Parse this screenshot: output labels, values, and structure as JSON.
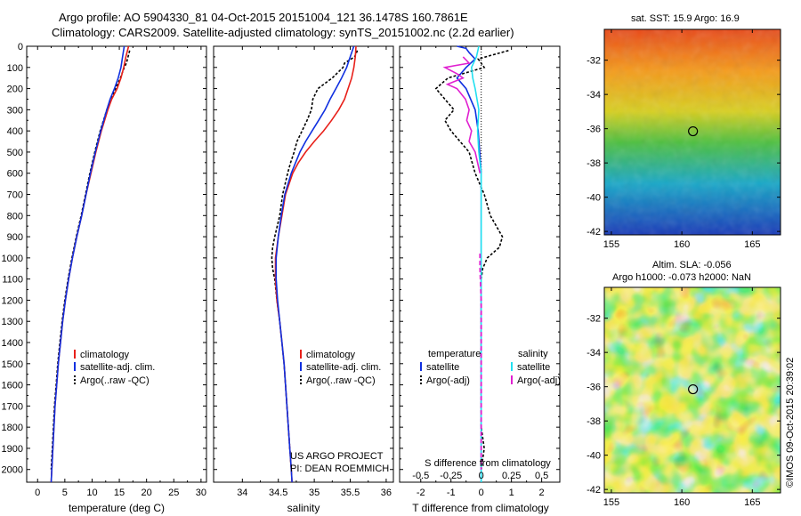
{
  "title_line1": "Argo profile: AO 5904330_81 04-Oct-2015 20151004_121 36.1478S 160.7861E",
  "title_line2": "Climatology: CARS2009. Satellite-adjusted climatology: synTS_20151002.nc (2.2d earlier)",
  "credit": "US ARGO PROJECT",
  "pi": "PI: DEAN ROEMMICH",
  "watermark": "©IMOS 09-Oct-2015 20:39:02",
  "colors": {
    "climatology": "#e8201a",
    "satellite": "#1030e0",
    "argo": "#000000",
    "sal_satellite": "#22e0f0",
    "sal_argo": "#e020d0"
  },
  "chart_data": [
    {
      "type": "line",
      "xlabel": "temperature (deg C)",
      "ylabel": "",
      "xlim": [
        -2,
        31
      ],
      "ylim": [
        2060,
        0
      ],
      "xticks": [
        "0",
        "5",
        "10",
        "15",
        "20",
        "25",
        "30"
      ],
      "yticks": [
        "0",
        "100",
        "200",
        "300",
        "400",
        "500",
        "600",
        "700",
        "800",
        "900",
        "1000",
        "1100",
        "1200",
        "1300",
        "1400",
        "1500",
        "1600",
        "1700",
        "1800",
        "1900",
        "2000"
      ],
      "legend": [
        "climatology",
        "satellite-adj. clim.",
        "Argo(..raw -QC)"
      ],
      "series": [
        {
          "name": "climatology",
          "depth": [
            0,
            50,
            100,
            150,
            200,
            250,
            300,
            400,
            500,
            600,
            700,
            800,
            900,
            1000,
            1100,
            1200,
            1300,
            1400,
            1500,
            1600,
            1700,
            1800,
            1900,
            2000,
            2060
          ],
          "values": [
            16.7,
            16.2,
            15.8,
            15.3,
            14.6,
            13.6,
            12.9,
            11.7,
            10.7,
            9.8,
            8.9,
            8.1,
            7.2,
            6.4,
            5.7,
            5.1,
            4.6,
            4.2,
            3.8,
            3.5,
            3.2,
            3.0,
            2.8,
            2.6,
            2.5
          ]
        },
        {
          "name": "satellite-adj. clim.",
          "depth": [
            0,
            50,
            100,
            150,
            200,
            250,
            300,
            400,
            500,
            600,
            700,
            800,
            900,
            1000,
            1100,
            1200,
            1300,
            1400,
            1500,
            1600,
            1700,
            1800,
            1900,
            2000,
            2060
          ],
          "values": [
            15.9,
            15.6,
            15.3,
            14.8,
            14.1,
            13.3,
            12.7,
            11.6,
            10.6,
            9.7,
            8.9,
            8.1,
            7.2,
            6.4,
            5.7,
            5.1,
            4.6,
            4.2,
            3.8,
            3.5,
            3.2,
            3.0,
            2.8,
            2.6,
            2.5
          ]
        },
        {
          "name": "Argo(..raw -QC)",
          "depth": [
            20,
            50,
            80,
            100,
            150,
            200,
            250,
            300,
            400,
            500,
            600,
            700,
            800,
            900,
            1000,
            1100,
            1200,
            1300,
            1400,
            1500,
            1600,
            1700,
            1800,
            1900,
            2000
          ],
          "values": [
            16.9,
            16.6,
            16.3,
            15.9,
            15.2,
            14.3,
            13.4,
            12.7,
            11.5,
            10.5,
            9.6,
            8.8,
            8.0,
            7.1,
            6.3,
            5.6,
            5.0,
            4.5,
            4.1,
            3.7,
            3.4,
            3.1,
            2.9,
            2.7,
            2.5
          ]
        }
      ]
    },
    {
      "type": "line",
      "xlabel": "salinity",
      "ylabel": "",
      "xlim": [
        33.6,
        36.1
      ],
      "ylim": [
        2060,
        0
      ],
      "xticks": [
        "34",
        "34.5",
        "35",
        "35.5",
        "36"
      ],
      "legend": [
        "climatology",
        "satellite-adj. clim.",
        "Argo(..raw -QC)"
      ],
      "series": [
        {
          "name": "climatology",
          "depth": [
            0,
            50,
            100,
            150,
            200,
            250,
            300,
            350,
            400,
            450,
            500,
            550,
            600,
            700,
            800,
            900,
            1000,
            1100,
            1200,
            1300,
            1400,
            1500,
            1600,
            1700,
            1800,
            1900,
            2000,
            2060
          ],
          "values": [
            35.58,
            35.57,
            35.55,
            35.52,
            35.47,
            35.42,
            35.34,
            35.24,
            35.13,
            35.0,
            34.88,
            34.78,
            34.7,
            34.6,
            34.55,
            34.5,
            34.46,
            34.46,
            34.48,
            34.52,
            34.55,
            34.58,
            34.6,
            34.62,
            34.64,
            34.66,
            34.68,
            34.69
          ]
        },
        {
          "name": "satellite-adj. clim.",
          "depth": [
            0,
            50,
            100,
            150,
            200,
            250,
            300,
            350,
            400,
            450,
            500,
            550,
            600,
            700,
            800,
            900,
            1000,
            1100,
            1200,
            1300,
            1400,
            1500,
            1600,
            1700,
            1800,
            1900,
            2000,
            2060
          ],
          "values": [
            35.55,
            35.5,
            35.45,
            35.38,
            35.3,
            35.22,
            35.15,
            35.06,
            34.97,
            34.88,
            34.8,
            34.74,
            34.68,
            34.59,
            34.54,
            34.5,
            34.47,
            34.47,
            34.49,
            34.52,
            34.55,
            34.58,
            34.6,
            34.62,
            34.64,
            34.66,
            34.68,
            34.69
          ]
        },
        {
          "name": "Argo(..raw -QC)",
          "depth": [
            20,
            50,
            80,
            100,
            150,
            200,
            250,
            300,
            350,
            400,
            450,
            500,
            550,
            600,
            700,
            800,
            900,
            950,
            1000,
            1050,
            1100,
            1200,
            1300,
            1400,
            1500,
            1600,
            1700,
            1800,
            1900,
            2000
          ],
          "values": [
            35.6,
            35.56,
            35.42,
            35.4,
            35.25,
            35.05,
            34.98,
            34.96,
            34.9,
            34.83,
            34.76,
            34.72,
            34.67,
            34.63,
            34.56,
            34.52,
            34.45,
            34.42,
            34.41,
            34.42,
            34.45,
            34.48,
            34.52,
            34.55,
            34.58,
            34.6,
            34.62,
            34.64,
            34.66,
            34.68
          ]
        }
      ]
    },
    {
      "type": "line",
      "xlabel": "T difference from climatology",
      "title": "S difference from climatology",
      "xlim": [
        -2.7,
        2.6
      ],
      "ylim": [
        2060,
        0
      ],
      "xticks": [
        "-2",
        "-1",
        "0",
        "1",
        "2"
      ],
      "top_xticks": [
        "-0.5",
        "-0.25",
        "0",
        "0.25",
        "0.5"
      ],
      "legend_titles": [
        "temperature",
        "salinity"
      ],
      "legend": [
        "satellite",
        "Argo(-adj)",
        "satellite",
        "Argo(-adj)"
      ],
      "series": [
        {
          "name": "T satellite",
          "depth": [
            0,
            10,
            30,
            60,
            100,
            150,
            200,
            300,
            400,
            500,
            600,
            700,
            800,
            900,
            1000,
            1100,
            1200,
            1400,
            1600,
            1800,
            2000,
            2060
          ],
          "values": [
            -0.8,
            -0.5,
            -0.4,
            -0.2,
            -0.5,
            -0.8,
            -0.5,
            -0.2,
            -0.1,
            -0.05,
            0,
            0,
            0,
            0,
            0,
            0,
            0,
            0,
            0,
            0,
            0,
            0
          ]
        },
        {
          "name": "T Argo(-adj)",
          "depth": [
            20,
            40,
            60,
            100,
            150,
            200,
            250,
            300,
            350,
            400,
            450,
            500,
            600,
            700,
            800,
            850,
            900,
            950,
            1000,
            1050,
            1100,
            1200,
            1400,
            1600,
            1800,
            1900,
            2000
          ],
          "values": [
            0.9,
            0.4,
            -0.1,
            0.1,
            -1.1,
            -1.5,
            -1.2,
            -0.9,
            -1.2,
            -1.0,
            -0.7,
            -0.4,
            -0.2,
            0.1,
            0.3,
            0.5,
            0.7,
            0.6,
            0.2,
            0.05,
            0,
            0,
            0,
            0,
            0,
            0.1,
            0
          ]
        },
        {
          "name": "S satellite",
          "depth": [
            0,
            50,
            100,
            150,
            200,
            300,
            400,
            500,
            600,
            700,
            800,
            900,
            1000,
            1200,
            1400,
            1600,
            1800,
            2000,
            2060
          ],
          "values": [
            -0.02,
            -0.04,
            -0.08,
            -0.07,
            -0.05,
            -0.02,
            -0.03,
            -0.02,
            0.0,
            0.0,
            0.0,
            0.0,
            0.0,
            0.0,
            0.0,
            0.0,
            0.0,
            0.0,
            0.0
          ]
        },
        {
          "name": "S Argo(-adj)",
          "depth": [
            50,
            80,
            100,
            130,
            150,
            180,
            200,
            250,
            300,
            350,
            400,
            450,
            500,
            550,
            600
          ],
          "values": [
            -0.15,
            -0.1,
            -0.3,
            -0.2,
            -0.15,
            -0.28,
            -0.2,
            -0.13,
            -0.1,
            -0.12,
            -0.08,
            -0.1,
            -0.05,
            -0.03,
            -0.01
          ]
        },
        {
          "name": "S Argo deep (dashed)",
          "depth": [
            980,
            1050,
            1200,
            1400,
            1600,
            1800,
            2000
          ],
          "values": [
            -0.01,
            -0.01,
            0,
            0,
            0,
            0,
            0
          ]
        }
      ]
    },
    {
      "type": "heatmap",
      "title": "sat. SST: 15.9 Argo: 16.9",
      "xlim": [
        154.5,
        167
      ],
      "ylim": [
        -42.2,
        -30.2
      ],
      "xticks": [
        "155",
        "160",
        "165"
      ],
      "yticks": [
        "-32",
        "-34",
        "-36",
        "-38",
        "-40",
        "-42"
      ],
      "marker": {
        "lon": 160.79,
        "lat": -36.15
      }
    },
    {
      "type": "heatmap",
      "title": "Altim. SLA: -0.056",
      "subtitle": "Argo h1000: -0.073 h2000: NaN",
      "xlim": [
        154.5,
        167
      ],
      "ylim": [
        -42.2,
        -30.2
      ],
      "xticks": [
        "155",
        "160",
        "165"
      ],
      "yticks": [
        "-32",
        "-34",
        "-36",
        "-38",
        "-40",
        "-42"
      ],
      "marker": {
        "lon": 160.79,
        "lat": -36.15
      }
    }
  ]
}
